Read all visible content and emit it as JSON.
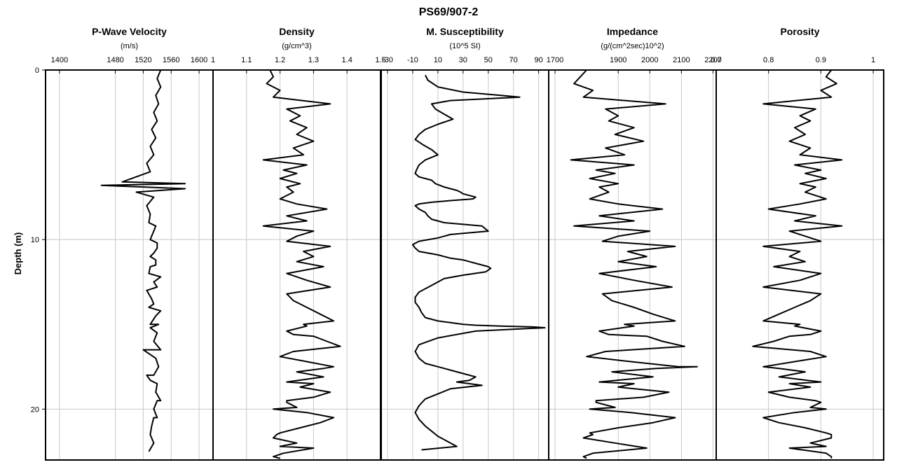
{
  "chart_data": {
    "type": "line",
    "title": "PS69/907-2",
    "ylabel": "Depth (m)",
    "y_axis": {
      "ylim": [
        0,
        23
      ],
      "ticks": [
        0,
        10,
        20
      ],
      "reversed": true
    },
    "grid": true,
    "tracks": [
      {
        "title": "P-Wave Velocity",
        "unit": "(m/s)",
        "xlim": [
          1380,
          1620
        ],
        "xticks": [
          1400,
          1480,
          1520,
          1560,
          1600
        ],
        "series": [
          {
            "x": [
              1545,
              1540,
              1545,
              1538,
              1542,
              1535,
              1540,
              1532,
              1538,
              1530,
              1535,
              1525,
              1530,
              1490,
              1580,
              1460,
              1580,
              1510,
              1535,
              1525,
              1530,
              1528,
              1535,
              1530,
              1540,
              1530,
              1538,
              1528,
              1535,
              1525,
              1532,
              1528,
              1538,
              1530,
              1540,
              1535,
              1545,
              1538,
              1542,
              1535,
              1540,
              1538,
              1545,
              1535,
              1540,
              1532,
              1530,
              1535,
              1528,
              1538,
              1532,
              1540,
              1535,
              1538,
              1530,
              1545,
              1540,
              1535,
              1545,
              1542,
              1530,
              1520,
              1525,
              1530,
              1540,
              1535
            ],
            "y": [
              0,
              0.5,
              1.0,
              1.5,
              2.0,
              2.5,
              3.0,
              3.5,
              4.0,
              4.5,
              5.0,
              5.5,
              6.0,
              6.6,
              6.7,
              6.8,
              7.0,
              7.2,
              7.5,
              8.0,
              8.5,
              9.0,
              9.5,
              10.0,
              10.5,
              11.0,
              11.5,
              12.0,
              12.5,
              13.0,
              13.5,
              14.0,
              14.5,
              15.0,
              15.5,
              16.0,
              16.5,
              17.0,
              17.5,
              18.0,
              18.5,
              19.0,
              19.5,
              20.0,
              20.5,
              21.0,
              21.5,
              22.0,
              22.5,
              9.2,
              9.8,
              10.2,
              10.8,
              11.2,
              11.6,
              12.2,
              12.8,
              13.8,
              14.2,
              15.0,
              15.2,
              16.5,
              18.0,
              18.3,
              19.5,
              20.5
            ]
          }
        ]
      },
      {
        "title": "Density",
        "unit": "(g/cm^3)",
        "xlim": [
          1.0,
          1.5
        ],
        "xticks": [
          1.0,
          1.1,
          1.2,
          1.3,
          1.4,
          1.5
        ],
        "series": [
          {
            "x": [
              1.17,
              1.18,
              1.16,
              1.2,
              1.18,
              1.35,
              1.22,
              1.26,
              1.23,
              1.28,
              1.25,
              1.3,
              1.24,
              1.27,
              1.15,
              1.28,
              1.21,
              1.25,
              1.2,
              1.26,
              1.22,
              1.24,
              1.2,
              1.25,
              1.34,
              1.22,
              1.28,
              1.15,
              1.3,
              1.25,
              1.22,
              1.35,
              1.27,
              1.3,
              1.25,
              1.33,
              1.22,
              1.28,
              1.35,
              1.22,
              1.24,
              1.28,
              1.32,
              1.36,
              1.28,
              1.22,
              1.3,
              1.34,
              1.38,
              1.24,
              1.2,
              1.28,
              1.36,
              1.25,
              1.33,
              1.22,
              1.26,
              1.35,
              1.3,
              1.22,
              1.25,
              1.28,
              1.36,
              1.32,
              1.26,
              1.2,
              1.18,
              1.25,
              1.3,
              1.21,
              1.2,
              1.27,
              1.24,
              1.33,
              1.3,
              1.22,
              1.18,
              1.19,
              1.2,
              1.18
            ],
            "y": [
              0,
              0.4,
              0.8,
              1.2,
              1.6,
              2.0,
              2.3,
              2.7,
              3.0,
              3.4,
              3.8,
              4.2,
              4.6,
              5.0,
              5.3,
              5.6,
              5.9,
              6.1,
              6.4,
              6.7,
              6.9,
              7.2,
              7.6,
              7.9,
              8.2,
              8.6,
              8.9,
              9.2,
              9.5,
              9.8,
              10.1,
              10.4,
              10.7,
              11.0,
              11.3,
              11.6,
              12.0,
              12.4,
              12.8,
              13.2,
              13.6,
              14.0,
              14.4,
              14.8,
              15.1,
              15.4,
              15.7,
              16.0,
              16.3,
              16.6,
              16.9,
              17.2,
              17.5,
              17.8,
              18.1,
              18.4,
              18.7,
              19.0,
              19.3,
              19.6,
              19.9,
              20.2,
              20.5,
              20.8,
              21.1,
              21.4,
              21.7,
              22.0,
              22.3,
              22.6,
              22.9,
              15.0,
              15.6,
              17.6,
              18.5,
              19.5,
              20.0,
              21.5,
              22.2,
              22.8
            ]
          }
        ]
      },
      {
        "title": "M. Susceptibility",
        "unit": "(10^5 SI)",
        "xlim": [
          -35,
          98
        ],
        "xticks": [
          -30,
          -10,
          10,
          30,
          50,
          70,
          90
        ],
        "series": [
          {
            "x": [
              0,
              2,
              10,
              30,
              60,
              75,
              20,
              5,
              8,
              15,
              22,
              10,
              0,
              -5,
              -8,
              -2,
              5,
              10,
              0,
              -5,
              -7,
              -8,
              -5,
              5,
              8,
              15,
              20,
              25,
              28,
              30,
              35,
              40,
              38,
              20,
              5,
              -5,
              -8,
              -5,
              0,
              2,
              5,
              15,
              45,
              50,
              20,
              10,
              -5,
              -10,
              -8,
              -5,
              10,
              20,
              30,
              35,
              40,
              45,
              50,
              52,
              48,
              30,
              15,
              10,
              5,
              0,
              -5,
              -8,
              -8,
              -5,
              -3,
              0,
              10,
              20,
              30,
              40,
              60,
              85,
              95,
              40,
              10,
              -5,
              -8,
              -5,
              0,
              10,
              20,
              30,
              40,
              35,
              25,
              45,
              20,
              10,
              0,
              -5,
              -8,
              -5,
              0,
              5,
              10,
              15,
              20,
              25,
              -3
            ],
            "y": [
              0.3,
              0.6,
              1.0,
              1.3,
              1.5,
              1.6,
              1.8,
              2.0,
              2.3,
              2.6,
              2.9,
              3.2,
              3.5,
              3.8,
              4.1,
              4.4,
              4.7,
              5.0,
              5.3,
              5.6,
              5.9,
              6.1,
              6.3,
              6.5,
              6.7,
              6.9,
              7.0,
              7.1,
              7.2,
              7.3,
              7.4,
              7.5,
              7.6,
              7.7,
              7.8,
              7.9,
              8.0,
              8.2,
              8.4,
              8.6,
              8.8,
              9.0,
              9.2,
              9.5,
              9.7,
              9.9,
              10.1,
              10.3,
              10.5,
              10.7,
              10.9,
              11.1,
              11.2,
              11.3,
              11.4,
              11.5,
              11.6,
              11.7,
              11.9,
              12.1,
              12.3,
              12.5,
              12.7,
              12.9,
              13.1,
              13.4,
              13.7,
              14.0,
              14.3,
              14.6,
              14.8,
              14.9,
              15.0,
              15.05,
              15.1,
              15.15,
              15.2,
              15.4,
              15.8,
              16.2,
              16.6,
              17.0,
              17.3,
              17.5,
              17.7,
              17.9,
              18.1,
              18.3,
              18.4,
              18.6,
              18.8,
              19.1,
              19.4,
              19.8,
              20.2,
              20.6,
              21.0,
              21.3,
              21.6,
              21.8,
              22.0,
              22.2,
              22.4
            ]
          }
        ]
      },
      {
        "title": "Impedance",
        "unit": "(g/(cm^2sec)10^2)",
        "xlim": [
          1680,
          2210
        ],
        "xticks": [
          1700,
          1900,
          2000,
          2100,
          2200
        ],
        "series": [
          {
            "x": [
              1800,
              1780,
              1760,
              1820,
              1790,
              2050,
              1860,
              1900,
              1870,
              1950,
              1890,
              1980,
              1860,
              1920,
              1750,
              1950,
              1830,
              1890,
              1810,
              1900,
              1840,
              1870,
              1810,
              1900,
              2040,
              1840,
              1950,
              1760,
              2000,
              1900,
              1850,
              2080,
              1930,
              1990,
              1900,
              2020,
              1840,
              1950,
              2070,
              1850,
              1880,
              1950,
              2010,
              2080,
              1950,
              1840,
              1990,
              2040,
              2110,
              1860,
              1800,
              1940,
              2090,
              1880,
              2010,
              1840,
              1900,
              2060,
              1980,
              1830,
              1890,
              1940,
              2080,
              2010,
              1900,
              1810,
              1790,
              1890,
              1990,
              1820,
              1800,
              1920,
              1870,
              2020,
              2150,
              1950,
              1830,
              1810,
              1820,
              1790
            ],
            "y": [
              0,
              0.4,
              0.8,
              1.2,
              1.6,
              2.0,
              2.3,
              2.7,
              3.0,
              3.4,
              3.8,
              4.2,
              4.6,
              5.0,
              5.3,
              5.6,
              5.9,
              6.1,
              6.4,
              6.7,
              6.9,
              7.2,
              7.6,
              7.9,
              8.2,
              8.6,
              8.9,
              9.2,
              9.5,
              9.8,
              10.1,
              10.4,
              10.7,
              11.0,
              11.3,
              11.6,
              12.0,
              12.4,
              12.8,
              13.2,
              13.6,
              14.0,
              14.4,
              14.8,
              15.1,
              15.4,
              15.7,
              16.0,
              16.3,
              16.6,
              16.9,
              17.2,
              17.5,
              17.8,
              18.1,
              18.4,
              18.7,
              19.0,
              19.3,
              19.6,
              19.9,
              20.2,
              20.5,
              20.8,
              21.1,
              21.4,
              21.7,
              22.0,
              22.3,
              22.6,
              22.9,
              15.0,
              15.6,
              17.6,
              17.5,
              18.5,
              19.5,
              20.0,
              21.5,
              22.8
            ]
          }
        ]
      },
      {
        "title": "Porosity",
        "unit": "",
        "xlim": [
          0.7,
          1.02
        ],
        "xticks": [
          0.7,
          0.8,
          0.9,
          1.0
        ],
        "series": [
          {
            "x": [
              0.92,
              0.91,
              0.93,
              0.9,
              0.92,
              0.79,
              0.89,
              0.86,
              0.88,
              0.85,
              0.87,
              0.84,
              0.88,
              0.86,
              0.94,
              0.85,
              0.9,
              0.87,
              0.91,
              0.86,
              0.89,
              0.87,
              0.91,
              0.86,
              0.8,
              0.89,
              0.85,
              0.94,
              0.84,
              0.87,
              0.9,
              0.79,
              0.86,
              0.84,
              0.87,
              0.81,
              0.9,
              0.86,
              0.79,
              0.9,
              0.88,
              0.85,
              0.82,
              0.79,
              0.85,
              0.9,
              0.84,
              0.81,
              0.77,
              0.88,
              0.91,
              0.85,
              0.79,
              0.87,
              0.82,
              0.9,
              0.88,
              0.8,
              0.84,
              0.9,
              0.88,
              0.85,
              0.79,
              0.82,
              0.87,
              0.91,
              0.92,
              0.88,
              0.84,
              0.91,
              0.92,
              0.86,
              0.88,
              0.82,
              0.84,
              0.89,
              0.91,
              0.92,
              0.91,
              0.92
            ],
            "y": [
              0,
              0.4,
              0.8,
              1.2,
              1.6,
              2.0,
              2.3,
              2.7,
              3.0,
              3.4,
              3.8,
              4.2,
              4.6,
              5.0,
              5.3,
              5.6,
              5.9,
              6.1,
              6.4,
              6.7,
              6.9,
              7.2,
              7.6,
              7.9,
              8.2,
              8.6,
              8.9,
              9.2,
              9.5,
              9.8,
              10.1,
              10.4,
              10.7,
              11.0,
              11.3,
              11.6,
              12.0,
              12.4,
              12.8,
              13.2,
              13.6,
              14.0,
              14.4,
              14.8,
              15.1,
              15.4,
              15.7,
              16.0,
              16.3,
              16.6,
              16.9,
              17.2,
              17.5,
              17.8,
              18.1,
              18.4,
              18.7,
              19.0,
              19.3,
              19.6,
              19.9,
              20.2,
              20.5,
              20.8,
              21.1,
              21.4,
              21.7,
              22.0,
              22.3,
              22.6,
              22.9,
              15.0,
              15.6,
              17.6,
              18.5,
              19.5,
              20.0,
              21.5,
              22.2,
              22.8
            ]
          }
        ]
      }
    ]
  }
}
